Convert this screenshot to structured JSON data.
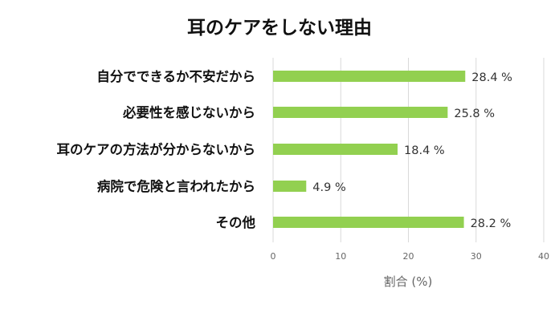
{
  "chart_data": {
    "type": "bar",
    "orientation": "horizontal",
    "title": "耳のケアをしない理由",
    "categories": [
      "自分でできるか不安だから",
      "必要性を感じないから",
      "耳のケアの方法が分からないから",
      "病院で危険と言われたから",
      "その他"
    ],
    "values": [
      28.4,
      25.8,
      18.4,
      4.9,
      28.2
    ],
    "value_labels": [
      "28.4 %",
      "25.8 %",
      "18.4 %",
      "4.9 %",
      "28.2 %"
    ],
    "xlabel": "割合 (%)",
    "ylabel": "",
    "xlim": [
      0,
      40
    ],
    "x_ticks": [
      "0",
      "10",
      "20",
      "30",
      "40"
    ],
    "grid": true,
    "legend": "none",
    "bar_color": "#92d050",
    "grid_color": "#d9d9d9"
  }
}
